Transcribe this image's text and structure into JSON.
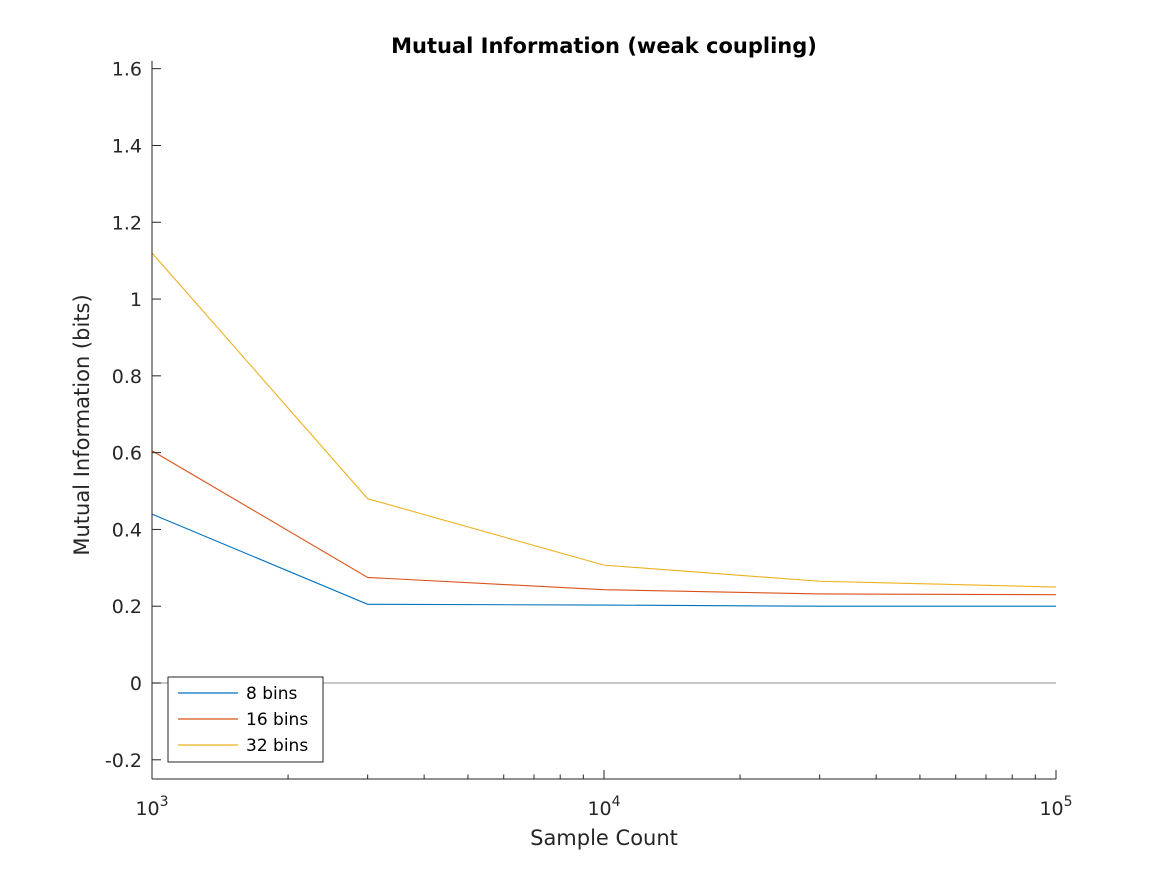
{
  "chart_data": {
    "type": "line",
    "title": "Mutual Information (weak coupling)",
    "xlabel": "Sample Count",
    "ylabel": "Mutual Information (bits)",
    "x_scale": "log",
    "xlim": [
      1000,
      100000
    ],
    "ylim": [
      -0.25,
      1.62
    ],
    "x": [
      1000,
      3000,
      10000,
      30000,
      100000
    ],
    "x_ticks": [
      {
        "value": 1000,
        "base": "10",
        "exp": "3"
      },
      {
        "value": 10000,
        "base": "10",
        "exp": "4"
      },
      {
        "value": 100000,
        "base": "10",
        "exp": "5"
      }
    ],
    "y_ticks": [
      {
        "value": -0.2,
        "label": "-0.2"
      },
      {
        "value": 0,
        "label": "0"
      },
      {
        "value": 0.2,
        "label": "0.2"
      },
      {
        "value": 0.4,
        "label": "0.4"
      },
      {
        "value": 0.6,
        "label": "0.6"
      },
      {
        "value": 0.8,
        "label": "0.8"
      },
      {
        "value": 1,
        "label": "1"
      },
      {
        "value": 1.2,
        "label": "1.2"
      },
      {
        "value": 1.4,
        "label": "1.4"
      },
      {
        "value": 1.6,
        "label": "1.6"
      }
    ],
    "reference_line": {
      "y": 0,
      "color": "#a6a6a6"
    },
    "grid": false,
    "legend_position": "bottom-left",
    "series": [
      {
        "name": "8 bins",
        "color": "#0072BD",
        "values": [
          0.44,
          0.205,
          0.203,
          0.2,
          0.2
        ]
      },
      {
        "name": "16 bins",
        "color": "#D95319",
        "values": [
          0.605,
          0.275,
          0.243,
          0.232,
          0.23
        ]
      },
      {
        "name": "32 bins",
        "color": "#EDB120",
        "values": [
          1.12,
          0.48,
          0.307,
          0.265,
          0.25
        ]
      }
    ]
  }
}
